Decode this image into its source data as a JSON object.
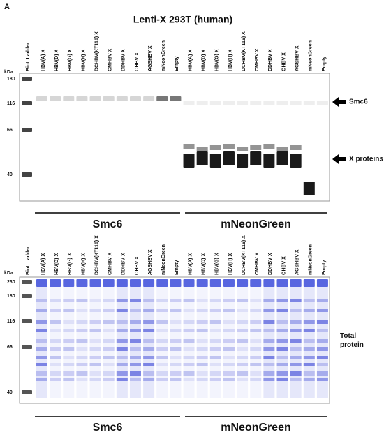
{
  "panel": "A",
  "title": "Lenti-X 293T (human)",
  "blots": [
    {
      "kda_unit": "kDa",
      "markers": [
        "180",
        "116",
        "66",
        "40"
      ],
      "lanes": [
        "Biot. Ladder",
        "HBV(A) X",
        "HBV(D) X",
        "HBV(G) X",
        "HBV(H) X",
        "DCHBV(KT116) X",
        "CMHBV X",
        "DDHBV X",
        "OHBV X",
        "AGSHBV X",
        "mNeonGreen",
        "Empty",
        "HBV(A) X",
        "HBV(D) X",
        "HBV(G) X",
        "HBV(H) X",
        "DCHBV(KT116) X",
        "CMHBV X",
        "DDHBV X",
        "OHBV X",
        "AGSHBV X",
        "mNeonGreen",
        "Empty"
      ],
      "annotations": [
        "Smc6",
        "X proteins"
      ],
      "groups": [
        "Smc6",
        "mNeonGreen"
      ]
    },
    {
      "kda_unit": "kDa",
      "markers": [
        "230",
        "180",
        "116",
        "66",
        "40"
      ],
      "lanes": [
        "Biot. Ladder",
        "HBV(A) X",
        "HBV(D) X",
        "HBV(G) X",
        "HBV(H) X",
        "DCHBV(KT116) X",
        "CMHBV X",
        "DDHBV X",
        "OHBV X",
        "AGSHBV X",
        "mNeonGreen",
        "Empty",
        "HBV(A) X",
        "HBV(D) X",
        "HBV(G) X",
        "HBV(H) X",
        "DCHBV(KT116) X",
        "CMHBV X",
        "DDHBV X",
        "OHBV X",
        "AGSHBV X",
        "mNeonGreen",
        "Empty"
      ],
      "annotations": [
        "Total protein"
      ],
      "groups": [
        "Smc6",
        "mNeonGreen"
      ]
    }
  ]
}
